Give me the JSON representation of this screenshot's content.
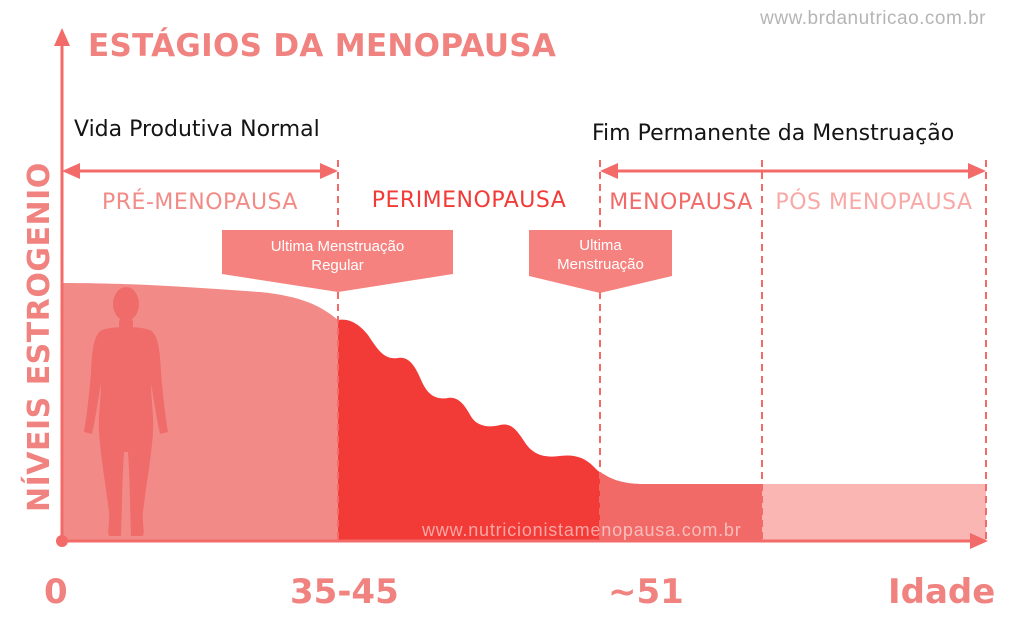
{
  "watermark_top": "www.brdanutricao.com.br",
  "title": "ESTÁGIOS DA MENOPAUSA",
  "span_left_label": "Vida Produtiva Normal",
  "span_right_label": "Fim Permanente da Menstruação",
  "y_axis_label": "NÍVEIS ESTROGENIO",
  "stages": [
    {
      "label": "PRÉ-MENOPAUSA",
      "color": "#f28b87"
    },
    {
      "label": "PERIMENOPAUSA",
      "color": "#f23a37"
    },
    {
      "label": "MENOPAUSA",
      "color": "#f26a68"
    },
    {
      "label": "PÓS MENOPAUSA",
      "color": "#f8a9a6"
    }
  ],
  "callouts": {
    "first_line1": "Ultima Menstruação",
    "first_line2": "Regular",
    "second_line1": "Ultima",
    "second_line2": "Menstruação"
  },
  "x_ticks": {
    "zero": "0",
    "t1": "35-45",
    "t2": "~51",
    "end": "Idade"
  },
  "watermark_mid": "www.nutricionistamenopausa.com.br",
  "colors": {
    "accent": "#f0827f",
    "axis": "#f36b69",
    "pre": "#f28b87",
    "peri": "#f23a37",
    "meno": "#f26a68",
    "post": "#f9b6b3",
    "figure": "#f06c6a"
  }
}
